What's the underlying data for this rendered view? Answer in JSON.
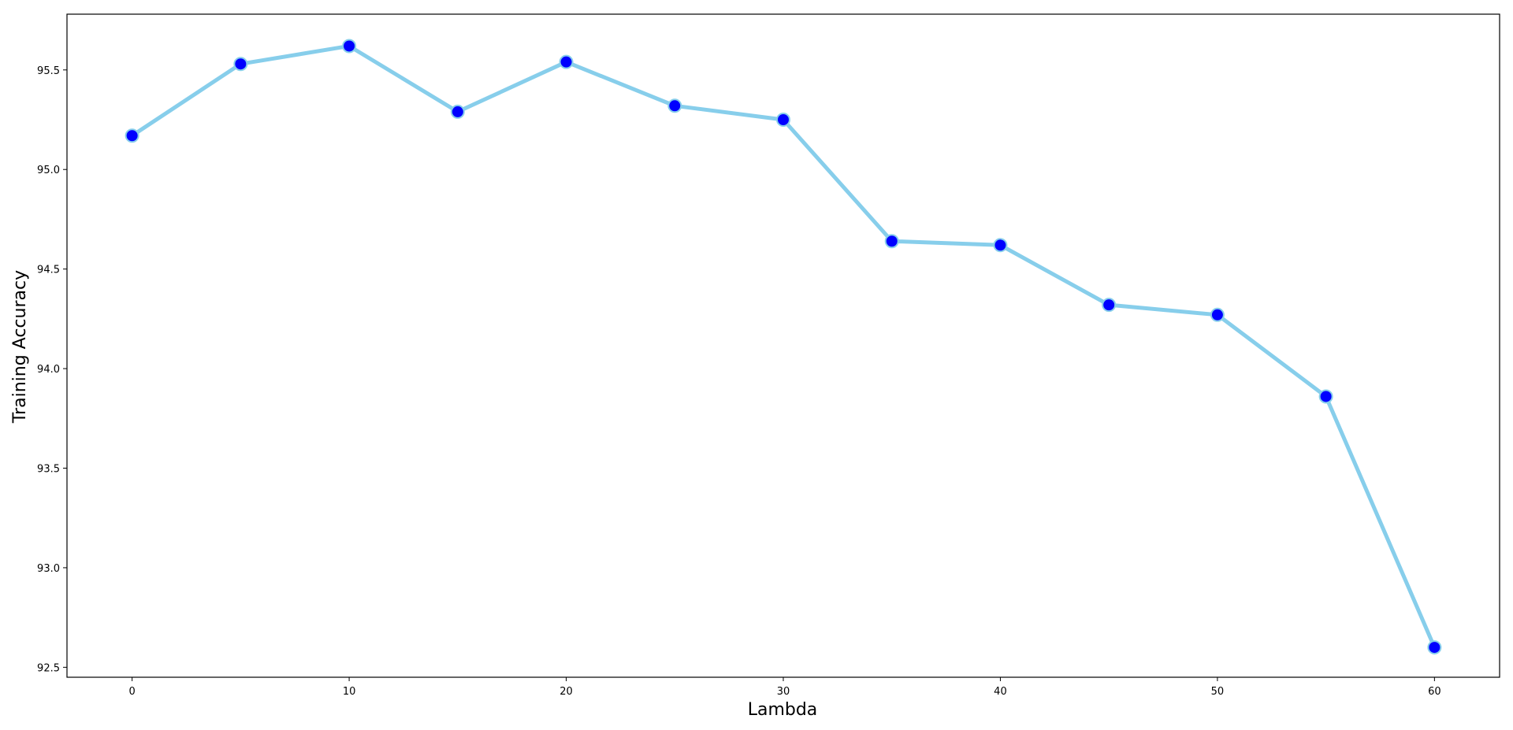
{
  "chart_data": {
    "type": "line",
    "title": "",
    "xlabel": "Lambda",
    "ylabel": "Training Accuracy",
    "xlim": [
      -3,
      63
    ],
    "ylim": [
      92.45,
      95.78
    ],
    "xticks": [
      0,
      10,
      20,
      30,
      40,
      50,
      60
    ],
    "yticks": [
      92.5,
      93.0,
      93.5,
      94.0,
      94.5,
      95.0,
      95.5
    ],
    "xtick_labels": [
      "0",
      "10",
      "20",
      "30",
      "40",
      "50",
      "60"
    ],
    "ytick_labels": [
      "92.5",
      "93.0",
      "93.5",
      "94.0",
      "94.5",
      "95.0",
      "95.5"
    ],
    "grid": false,
    "legend": false,
    "series": [
      {
        "x": [
          0,
          5,
          10,
          15,
          20,
          25,
          30,
          35,
          40,
          45,
          50,
          55,
          60
        ],
        "values": [
          95.17,
          95.53,
          95.62,
          95.29,
          95.54,
          95.32,
          95.25,
          94.64,
          94.62,
          94.32,
          94.27,
          93.86,
          92.6
        ],
        "line_color": "#87ceeb",
        "marker_color": "#0000ff",
        "marker_edge_color": "#87ceeb"
      }
    ]
  }
}
